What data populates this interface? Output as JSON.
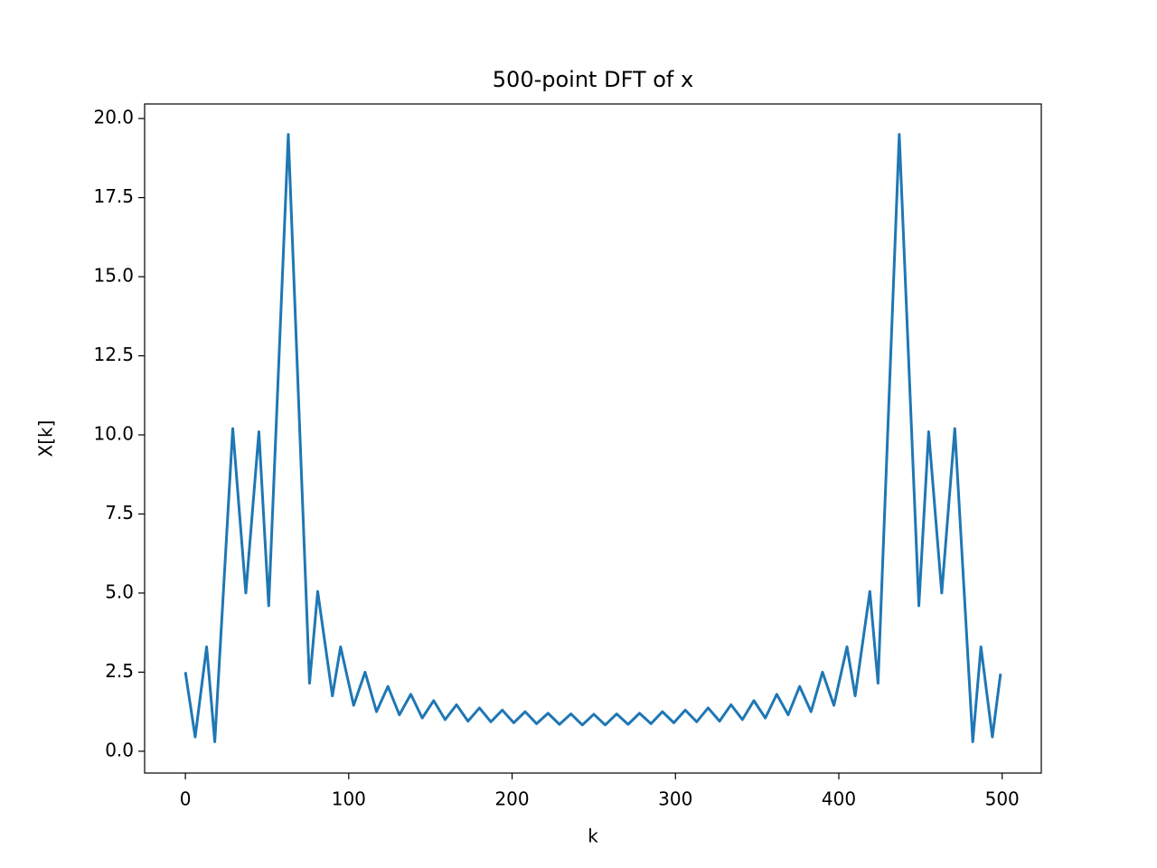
{
  "chart_data": {
    "type": "line",
    "title": "500-point DFT of x",
    "xlabel": "k",
    "ylabel": "X[k]",
    "x": [
      0,
      6,
      13,
      18,
      29,
      37,
      45,
      51,
      63,
      76,
      81,
      90,
      95,
      103,
      110,
      117,
      124,
      131,
      138,
      145,
      152,
      159,
      166,
      173,
      180,
      187,
      194,
      201,
      208,
      215,
      222,
      229,
      236,
      243,
      250,
      257,
      264,
      271,
      278,
      285,
      292,
      299,
      306,
      313,
      320,
      327,
      334,
      341,
      348,
      355,
      362,
      369,
      376,
      383,
      390,
      397,
      405,
      410,
      419,
      424,
      437,
      449,
      455,
      463,
      471,
      482,
      487,
      494,
      499
    ],
    "series": [
      {
        "color": "#1f77b4",
        "values": [
          2.5,
          0.45,
          3.3,
          0.3,
          10.2,
          5.0,
          10.1,
          4.6,
          19.5,
          2.15,
          5.05,
          1.75,
          3.3,
          1.45,
          2.5,
          1.25,
          2.05,
          1.15,
          1.8,
          1.05,
          1.6,
          1.0,
          1.47,
          0.95,
          1.37,
          0.93,
          1.3,
          0.9,
          1.25,
          0.87,
          1.2,
          0.85,
          1.18,
          0.83,
          1.17,
          0.83,
          1.18,
          0.85,
          1.2,
          0.87,
          1.25,
          0.9,
          1.3,
          0.93,
          1.37,
          0.95,
          1.47,
          1.0,
          1.6,
          1.05,
          1.8,
          1.15,
          2.05,
          1.25,
          2.5,
          1.45,
          3.3,
          1.75,
          5.05,
          2.15,
          19.5,
          4.6,
          10.1,
          5.0,
          10.2,
          0.3,
          3.3,
          0.45,
          2.45
        ]
      }
    ],
    "xlim": [
      -24.95,
      523.95
    ],
    "ylim": [
      -0.69,
      20.46
    ],
    "xticks": [
      0,
      100,
      200,
      300,
      400,
      500
    ],
    "yticks": [
      {
        "value": 0,
        "label": "0.0"
      },
      {
        "value": 2.5,
        "label": "2.5"
      },
      {
        "value": 5,
        "label": "5.0"
      },
      {
        "value": 7.5,
        "label": "7.5"
      },
      {
        "value": 10,
        "label": "10.0"
      },
      {
        "value": 12.5,
        "label": "12.5"
      },
      {
        "value": 15,
        "label": "15.0"
      },
      {
        "value": 17.5,
        "label": "17.5"
      },
      {
        "value": 20,
        "label": "20.0"
      }
    ]
  }
}
